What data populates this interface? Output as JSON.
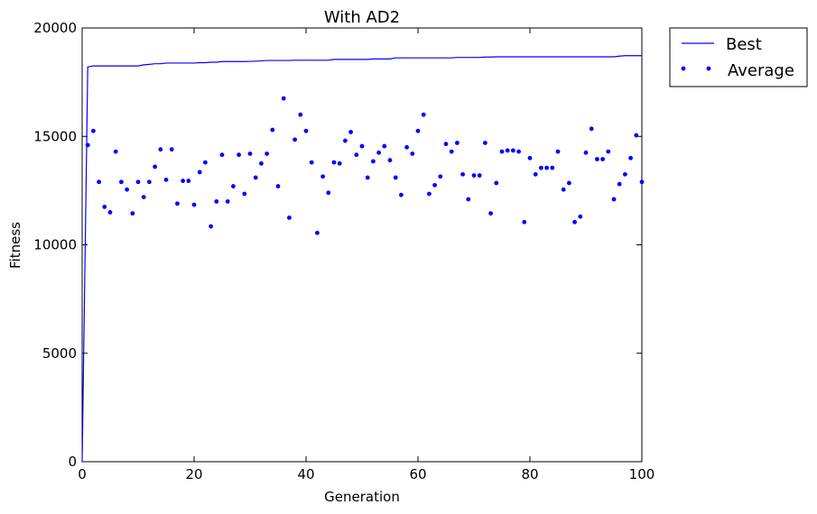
{
  "chart_data": {
    "type": "line",
    "title": "With AD2",
    "xlabel": "Generation",
    "ylabel": "Fitness",
    "xlim": [
      0,
      100
    ],
    "ylim": [
      0,
      20000
    ],
    "xticks": [
      0,
      20,
      40,
      60,
      80,
      100
    ],
    "xtick_labels": [
      "0",
      "20",
      "40",
      "60",
      "80",
      "100"
    ],
    "yticks": [
      0,
      5000,
      10000,
      15000,
      20000
    ],
    "ytick_labels": [
      "0",
      "5000",
      "10000",
      "15000",
      "20000"
    ],
    "grid": false,
    "legend_position": "outside-top-right",
    "series": [
      {
        "name": "Best",
        "style": "line",
        "color": "#0000ff",
        "x": [
          0,
          1,
          2,
          3,
          4,
          5,
          6,
          7,
          8,
          9,
          10,
          11,
          12,
          13,
          14,
          15,
          16,
          17,
          18,
          19,
          20,
          21,
          22,
          23,
          24,
          25,
          26,
          27,
          28,
          29,
          30,
          31,
          32,
          33,
          34,
          35,
          36,
          37,
          38,
          39,
          40,
          41,
          42,
          43,
          44,
          45,
          46,
          47,
          48,
          49,
          50,
          51,
          52,
          53,
          54,
          55,
          56,
          57,
          58,
          59,
          60,
          61,
          62,
          63,
          64,
          65,
          66,
          67,
          68,
          69,
          70,
          71,
          72,
          73,
          74,
          75,
          76,
          77,
          78,
          79,
          80,
          81,
          82,
          83,
          84,
          85,
          86,
          87,
          88,
          89,
          90,
          91,
          92,
          93,
          94,
          95,
          96,
          97,
          98,
          99,
          100
        ],
        "values": [
          0,
          18200,
          18250,
          18250,
          18250,
          18250,
          18250,
          18250,
          18250,
          18250,
          18250,
          18300,
          18320,
          18350,
          18350,
          18380,
          18380,
          18380,
          18380,
          18380,
          18380,
          18400,
          18400,
          18420,
          18420,
          18450,
          18450,
          18450,
          18450,
          18450,
          18460,
          18470,
          18480,
          18500,
          18500,
          18500,
          18500,
          18500,
          18510,
          18510,
          18510,
          18510,
          18510,
          18510,
          18510,
          18550,
          18550,
          18550,
          18550,
          18550,
          18550,
          18550,
          18570,
          18570,
          18570,
          18570,
          18620,
          18620,
          18620,
          18620,
          18620,
          18620,
          18620,
          18620,
          18620,
          18620,
          18620,
          18640,
          18640,
          18640,
          18640,
          18640,
          18660,
          18660,
          18670,
          18670,
          18670,
          18670,
          18670,
          18670,
          18670,
          18670,
          18670,
          18670,
          18670,
          18670,
          18670,
          18670,
          18670,
          18670,
          18670,
          18670,
          18670,
          18670,
          18670,
          18670,
          18700,
          18720,
          18720,
          18720,
          18720
        ]
      },
      {
        "name": "Average",
        "style": "dots",
        "color": "#0000ff",
        "x": [
          1,
          2,
          3,
          4,
          5,
          6,
          7,
          8,
          9,
          10,
          11,
          12,
          13,
          14,
          15,
          16,
          17,
          18,
          19,
          20,
          21,
          22,
          23,
          24,
          25,
          26,
          27,
          28,
          29,
          30,
          31,
          32,
          33,
          34,
          35,
          36,
          37,
          38,
          39,
          40,
          41,
          42,
          43,
          44,
          45,
          46,
          47,
          48,
          49,
          50,
          51,
          52,
          53,
          54,
          55,
          56,
          57,
          58,
          59,
          60,
          61,
          62,
          63,
          64,
          65,
          66,
          67,
          68,
          69,
          70,
          71,
          72,
          73,
          74,
          75,
          76,
          77,
          78,
          79,
          80,
          81,
          82,
          83,
          84,
          85,
          86,
          87,
          88,
          89,
          90,
          91,
          92,
          93,
          94,
          95,
          96,
          97,
          98,
          99,
          100
        ],
        "values": [
          14600,
          15250,
          12900,
          11750,
          11500,
          14300,
          12900,
          12550,
          11450,
          12900,
          12200,
          12900,
          13600,
          14400,
          13000,
          14400,
          11900,
          12950,
          12950,
          11850,
          13350,
          13800,
          10850,
          12000,
          14150,
          12000,
          12700,
          14150,
          12350,
          14200,
          13100,
          13750,
          14200,
          15300,
          12700,
          16750,
          11250,
          14850,
          16000,
          15250,
          13800,
          10550,
          13150,
          12400,
          13800,
          13750,
          14800,
          15200,
          14150,
          14550,
          13100,
          13850,
          14250,
          14550,
          13900,
          13100,
          12300,
          14500,
          14200,
          15250,
          16000,
          12350,
          12750,
          13150,
          14650,
          14300,
          14700,
          13250,
          12100,
          13200,
          13200,
          14700,
          11450,
          12850,
          14300,
          14350,
          14350,
          14300,
          11050,
          14000,
          13250,
          13550,
          13550,
          13550,
          14300,
          12550,
          12850,
          11050,
          11300,
          14250,
          15350,
          13950,
          13950,
          14300,
          12100,
          12800,
          13250,
          14000,
          15050,
          12900
        ]
      }
    ]
  }
}
